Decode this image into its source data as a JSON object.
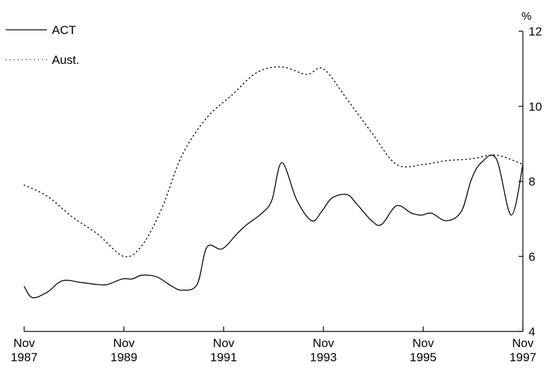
{
  "chart_data": {
    "type": "line",
    "title": "",
    "xlabel": "",
    "ylabel": "",
    "y_unit": "%",
    "ylim": [
      4,
      12
    ],
    "yticks": [
      4,
      6,
      8,
      10,
      12
    ],
    "y_tick_labels": [
      "4",
      "6",
      "8",
      "10",
      "12"
    ],
    "y_axis_side": "right",
    "xlim": [
      1987.833,
      1997.833
    ],
    "x_ticks": [
      {
        "month": "Nov",
        "year": "1987"
      },
      {
        "month": "Nov",
        "year": "1989"
      },
      {
        "month": "Nov",
        "year": "1991"
      },
      {
        "month": "Nov",
        "year": "1993"
      },
      {
        "month": "Nov",
        "year": "1995"
      },
      {
        "month": "Nov",
        "year": "1997"
      }
    ],
    "x_tick_values": [
      1987.833,
      1989.833,
      1991.833,
      1993.833,
      1995.833,
      1997.833
    ],
    "grid": false,
    "legend_position": "top-left",
    "series": [
      {
        "name": "ACT",
        "style": "solid",
        "color": "#000000",
        "x": [
          1987.833,
          1988.0,
          1988.3,
          1988.6,
          1989.0,
          1989.3,
          1989.5,
          1989.8,
          1990.0,
          1990.2,
          1990.5,
          1990.8,
          1991.0,
          1991.3,
          1991.5,
          1991.8,
          1992.1,
          1992.3,
          1992.6,
          1992.8,
          1993.0,
          1993.3,
          1993.6,
          1993.8,
          1994.0,
          1994.3,
          1994.5,
          1994.8,
          1995.0,
          1995.3,
          1995.6,
          1995.8,
          1996.0,
          1996.3,
          1996.6,
          1996.8,
          1997.0,
          1997.3,
          1997.6,
          1997.833
        ],
        "values": [
          5.2,
          4.9,
          5.05,
          5.35,
          5.3,
          5.25,
          5.25,
          5.4,
          5.4,
          5.5,
          5.45,
          5.2,
          5.1,
          5.25,
          6.25,
          6.2,
          6.6,
          6.85,
          7.15,
          7.5,
          8.5,
          7.5,
          6.95,
          7.2,
          7.55,
          7.65,
          7.4,
          6.95,
          6.85,
          7.35,
          7.15,
          7.1,
          7.15,
          6.95,
          7.2,
          8.05,
          8.5,
          8.6,
          7.1,
          8.45
        ]
      },
      {
        "name": "Aust.",
        "style": "dotted",
        "color": "#000000",
        "x": [
          1987.833,
          1988.3,
          1988.8,
          1989.3,
          1989.833,
          1990.2,
          1990.6,
          1991.0,
          1991.5,
          1992.0,
          1992.5,
          1993.0,
          1993.5,
          1993.833,
          1994.3,
          1994.8,
          1995.3,
          1995.833,
          1996.3,
          1996.8,
          1997.3,
          1997.833
        ],
        "values": [
          7.9,
          7.6,
          7.05,
          6.6,
          6.0,
          6.3,
          7.3,
          8.7,
          9.7,
          10.3,
          10.9,
          11.05,
          10.85,
          11.0,
          10.2,
          9.3,
          8.45,
          8.45,
          8.55,
          8.6,
          8.7,
          8.45
        ]
      }
    ]
  }
}
